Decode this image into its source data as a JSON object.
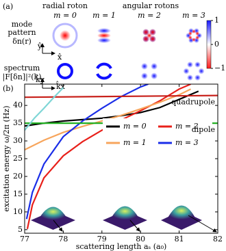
{
  "panel_a": {
    "label": "(a)",
    "group_labels": [
      "radial roton",
      "angular rotons"
    ],
    "columns": [
      "m = 0",
      "m = 1",
      "m = 2",
      "m = 3"
    ],
    "row_labels": [
      [
        "mode",
        "pattern",
        "δn(r)"
      ],
      [
        "spectrum",
        "|F[δn]|²(k)"
      ]
    ],
    "axis_labels": [
      "x̂",
      "ŷ",
      "k̂x",
      "k̂y"
    ],
    "colorbar": {
      "ticks": [
        1,
        0,
        {
          "value": -1,
          "label": "−1"
        }
      ],
      "lim": [
        -1,
        1
      ]
    }
  },
  "chart_data": {
    "type": "line",
    "panel_label": "(b)",
    "x_label": "scattering length aₛ (a₀)",
    "y_label": "excitation energy ω/2π (Hz)",
    "xlim": [
      77,
      82
    ],
    "ylim": [
      4,
      46
    ],
    "xticks": [
      77,
      78,
      79,
      80,
      81,
      82
    ],
    "yticks": [
      5,
      10,
      15,
      20,
      25,
      30,
      35,
      40
    ],
    "series": [
      {
        "name": "m = 0",
        "color": "#000000",
        "x": [
          77,
          77.5,
          78,
          78.5,
          79,
          79.5,
          80,
          80.5,
          81,
          81.5
        ],
        "values": [
          34.2,
          35.0,
          35.6,
          36.0,
          36.4,
          37.1,
          38.0,
          39.4,
          41.7,
          44.0
        ]
      },
      {
        "name": "m = 2",
        "color": "#e8201a",
        "x": [
          77.07,
          77.2,
          77.5,
          78,
          78.5,
          79,
          79.5,
          80,
          80.5,
          81,
          81.3
        ],
        "values": [
          5.2,
          12.0,
          19.6,
          25.8,
          29.8,
          33.0,
          35.9,
          38.5,
          41.3,
          44.6,
          46
        ]
      },
      {
        "name": "m = 1",
        "color": "#f7a55c",
        "x": [
          77,
          77.5,
          78,
          78.5,
          79,
          79.5,
          80,
          80.5,
          81,
          81.3
        ],
        "values": [
          27.5,
          30.2,
          32.4,
          34.1,
          35.6,
          37.2,
          39.0,
          40.9,
          43.0,
          44.6
        ]
      },
      {
        "name": "m = 3",
        "color": "#1a2ee8",
        "x": [
          77.05,
          77.2,
          77.5,
          78,
          78.5,
          79,
          79.5,
          80,
          80.2
        ],
        "values": [
          8.0,
          15.5,
          23.5,
          31.2,
          35.6,
          39.2,
          42.5,
          45.2,
          46
        ]
      },
      {
        "name": "quadrupole",
        "color": "#c8201a",
        "direct_label": true,
        "x": [
          77,
          82
        ],
        "values": [
          42.3,
          42.8
        ]
      },
      {
        "name": "dipole",
        "color": "#22b022",
        "direct_label": true,
        "x": [
          77,
          82
        ],
        "values": [
          35,
          35
        ]
      },
      {
        "color": "#7fd6d6",
        "x": [
          77,
          77.25,
          77.5,
          77.75,
          78
        ],
        "values": [
          33.0,
          36.4,
          39.2,
          42.2,
          45.0
        ]
      }
    ]
  }
}
